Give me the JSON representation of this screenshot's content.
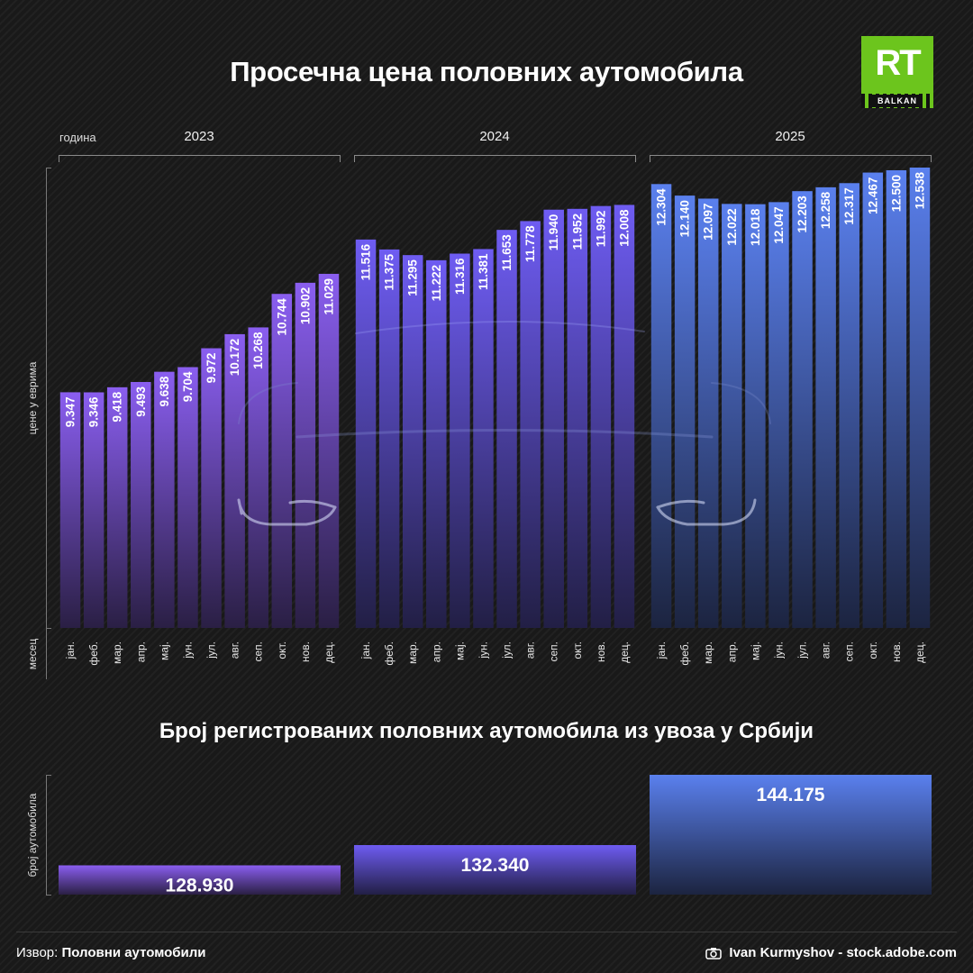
{
  "logo": {
    "main": "RT",
    "sub": "BALKAN"
  },
  "colors": {
    "c2023_top": "#8a5ef0",
    "c2023_bottom": "#2a1f44",
    "c2024_top": "#6e5cf2",
    "c2024_bottom": "#221f45",
    "c2025_top": "#5a80ee",
    "c2025_bottom": "#1c2440"
  },
  "chart_data": [
    {
      "type": "bar",
      "title": "Просечна цена половних аутомобила",
      "xlabel": "месец",
      "ylabel": "цене у еврима",
      "group_label": "година",
      "groups": [
        "2023",
        "2024",
        "2025"
      ],
      "categories": [
        "јан.",
        "феб.",
        "мар.",
        "апр.",
        "мај.",
        "јун.",
        "јул.",
        "авг.",
        "сеп.",
        "окт.",
        "нов.",
        "дец."
      ],
      "series": [
        {
          "name": "2023",
          "values": [
            9.347,
            9.346,
            9.418,
            9.493,
            9.638,
            9.704,
            9.972,
            10.172,
            10.268,
            10.744,
            10.902,
            11.029
          ],
          "labels": [
            "9.347",
            "9.346",
            "9.418",
            "9.493",
            "9.638",
            "9.704",
            "9.972",
            "10.172",
            "10.268",
            "10.744",
            "10.902",
            "11.029"
          ]
        },
        {
          "name": "2024",
          "values": [
            11.516,
            11.375,
            11.295,
            11.222,
            11.316,
            11.381,
            11.653,
            11.778,
            11.94,
            11.952,
            11.992,
            12.008
          ],
          "labels": [
            "11.516",
            "11.375",
            "11.295",
            "11.222",
            "11.316",
            "11.381",
            "11.653",
            "11.778",
            "11.940",
            "11.952",
            "11.992",
            "12.008"
          ]
        },
        {
          "name": "2025",
          "values": [
            12.304,
            12.14,
            12.097,
            12.022,
            12.018,
            12.047,
            12.203,
            12.258,
            12.317,
            12.467,
            12.5,
            12.538
          ],
          "labels": [
            "12.304",
            "12.140",
            "12.097",
            "12.022",
            "12.018",
            "12.047",
            "12.203",
            "12.258",
            "12.317",
            "12.467",
            "12.500",
            "12.538"
          ]
        }
      ]
    },
    {
      "type": "bar",
      "title": "Број регистрованих половних аутомобила из увоза у Србији",
      "ylabel": "број аутомобила",
      "categories": [
        "2023",
        "2024",
        "2025"
      ],
      "values": [
        128930,
        132340,
        144175
      ],
      "labels": [
        "128.930",
        "132.340",
        "144.175"
      ]
    }
  ],
  "footer": {
    "source_prefix": "Извор:",
    "source_name": "Половни аутомобили",
    "credit": "Ivan Kurmyshov - stock.adobe.com"
  }
}
